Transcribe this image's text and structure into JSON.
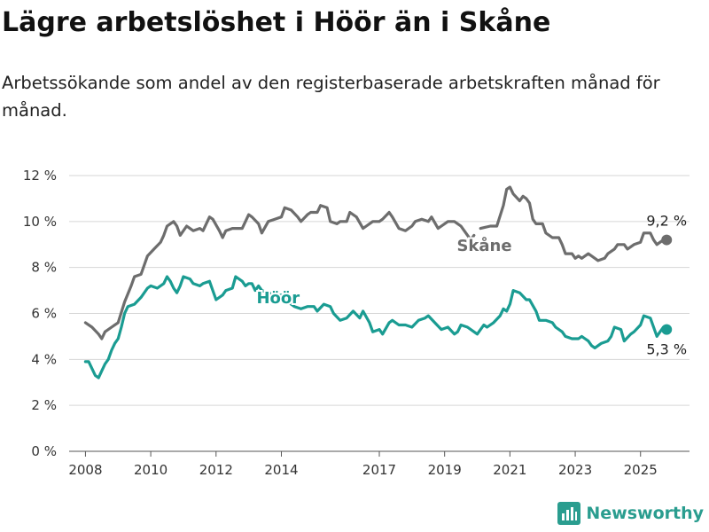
{
  "header": {
    "title": "Lägre arbetslöshet i Höör än i Skåne",
    "subtitle": "Arbetssökande som andel av den registerbaserade arbetskraften månad för månad."
  },
  "brand": {
    "name": "Newsworthy",
    "icon": "bar-chart-logo-icon"
  },
  "chart_data": {
    "type": "line",
    "xlim": [
      2007.5,
      2026.5
    ],
    "ylim": [
      0,
      12
    ],
    "x_ticks": [
      2008,
      2010,
      2012,
      2014,
      2017,
      2019,
      2021,
      2023,
      2025
    ],
    "y_ticks": [
      {
        "value": 0,
        "label": "0 %"
      },
      {
        "value": 2,
        "label": "2 %"
      },
      {
        "value": 4,
        "label": "4 %"
      },
      {
        "value": 6,
        "label": "6 %"
      },
      {
        "value": 8,
        "label": "8 %"
      },
      {
        "value": 10,
        "label": "10 %"
      },
      {
        "value": 12,
        "label": "12 %"
      }
    ],
    "grid": "horizontal",
    "series": [
      {
        "name": "Skåne",
        "color": "#6d6d6d",
        "end_label": "9,2 %",
        "points": [
          [
            2008.0,
            5.6
          ],
          [
            2008.2,
            5.4
          ],
          [
            2008.4,
            5.1
          ],
          [
            2008.5,
            4.9
          ],
          [
            2008.6,
            5.2
          ],
          [
            2008.8,
            5.4
          ],
          [
            2009.0,
            5.6
          ],
          [
            2009.2,
            6.5
          ],
          [
            2009.4,
            7.2
          ],
          [
            2009.5,
            7.6
          ],
          [
            2009.7,
            7.7
          ],
          [
            2009.9,
            8.5
          ],
          [
            2010.1,
            8.8
          ],
          [
            2010.3,
            9.1
          ],
          [
            2010.4,
            9.4
          ],
          [
            2010.5,
            9.8
          ],
          [
            2010.7,
            10.0
          ],
          [
            2010.8,
            9.8
          ],
          [
            2010.9,
            9.4
          ],
          [
            2011.1,
            9.8
          ],
          [
            2011.2,
            9.7
          ],
          [
            2011.3,
            9.6
          ],
          [
            2011.5,
            9.7
          ],
          [
            2011.6,
            9.6
          ],
          [
            2011.8,
            10.2
          ],
          [
            2011.9,
            10.1
          ],
          [
            2012.1,
            9.6
          ],
          [
            2012.2,
            9.3
          ],
          [
            2012.3,
            9.6
          ],
          [
            2012.5,
            9.7
          ],
          [
            2012.7,
            9.7
          ],
          [
            2012.8,
            9.7
          ],
          [
            2013.0,
            10.3
          ],
          [
            2013.1,
            10.2
          ],
          [
            2013.3,
            9.9
          ],
          [
            2013.4,
            9.5
          ],
          [
            2013.6,
            10.0
          ],
          [
            2013.8,
            10.1
          ],
          [
            2014.0,
            10.2
          ],
          [
            2014.1,
            10.6
          ],
          [
            2014.3,
            10.5
          ],
          [
            2014.5,
            10.2
          ],
          [
            2014.6,
            10.0
          ],
          [
            2014.8,
            10.3
          ],
          [
            2014.9,
            10.4
          ],
          [
            2015.1,
            10.4
          ],
          [
            2015.2,
            10.7
          ],
          [
            2015.4,
            10.6
          ],
          [
            2015.5,
            10.0
          ],
          [
            2015.7,
            9.9
          ],
          [
            2015.8,
            10.0
          ],
          [
            2016.0,
            10.0
          ],
          [
            2016.1,
            10.4
          ],
          [
            2016.3,
            10.2
          ],
          [
            2016.5,
            9.7
          ],
          [
            2016.6,
            9.8
          ],
          [
            2016.8,
            10.0
          ],
          [
            2017.0,
            10.0
          ],
          [
            2017.1,
            10.1
          ],
          [
            2017.3,
            10.4
          ],
          [
            2017.4,
            10.2
          ],
          [
            2017.6,
            9.7
          ],
          [
            2017.8,
            9.6
          ],
          [
            2018.0,
            9.8
          ],
          [
            2018.1,
            10.0
          ],
          [
            2018.3,
            10.1
          ],
          [
            2018.5,
            10.0
          ],
          [
            2018.6,
            10.2
          ],
          [
            2018.8,
            9.7
          ],
          [
            2018.9,
            9.8
          ],
          [
            2019.1,
            10.0
          ],
          [
            2019.3,
            10.0
          ],
          [
            2019.5,
            9.8
          ],
          [
            2019.6,
            9.6
          ],
          [
            2019.8,
            9.2
          ],
          [
            2019.9,
            9.4
          ]
        ],
        "points_b": [
          [
            2020.1,
            9.7
          ],
          [
            2020.4,
            9.8
          ],
          [
            2020.6,
            9.8
          ],
          [
            2020.8,
            10.7
          ],
          [
            2020.9,
            11.4
          ],
          [
            2021.0,
            11.5
          ],
          [
            2021.1,
            11.2
          ],
          [
            2021.3,
            10.9
          ],
          [
            2021.4,
            11.1
          ],
          [
            2021.5,
            11.0
          ],
          [
            2021.6,
            10.8
          ],
          [
            2021.7,
            10.1
          ],
          [
            2021.8,
            9.9
          ],
          [
            2022.0,
            9.9
          ],
          [
            2022.1,
            9.5
          ],
          [
            2022.3,
            9.3
          ],
          [
            2022.5,
            9.3
          ],
          [
            2022.6,
            9.0
          ],
          [
            2022.7,
            8.6
          ],
          [
            2022.9,
            8.6
          ],
          [
            2023.0,
            8.4
          ],
          [
            2023.1,
            8.5
          ],
          [
            2023.2,
            8.4
          ],
          [
            2023.4,
            8.6
          ],
          [
            2023.6,
            8.4
          ],
          [
            2023.7,
            8.3
          ],
          [
            2023.9,
            8.4
          ],
          [
            2024.0,
            8.6
          ],
          [
            2024.2,
            8.8
          ],
          [
            2024.3,
            9.0
          ],
          [
            2024.5,
            9.0
          ],
          [
            2024.6,
            8.8
          ],
          [
            2024.8,
            9.0
          ],
          [
            2025.0,
            9.1
          ],
          [
            2025.1,
            9.5
          ],
          [
            2025.3,
            9.5
          ],
          [
            2025.4,
            9.2
          ],
          [
            2025.5,
            9.0
          ],
          [
            2025.6,
            9.1
          ],
          [
            2025.7,
            9.2
          ],
          [
            2025.8,
            9.2
          ]
        ]
      },
      {
        "name": "Höör",
        "color": "#1a9c92",
        "end_label": "5,3 %",
        "points": [
          [
            2008.0,
            3.9
          ],
          [
            2008.1,
            3.9
          ],
          [
            2008.2,
            3.6
          ],
          [
            2008.3,
            3.3
          ],
          [
            2008.4,
            3.2
          ],
          [
            2008.5,
            3.5
          ],
          [
            2008.6,
            3.8
          ],
          [
            2008.7,
            4.0
          ],
          [
            2008.8,
            4.4
          ],
          [
            2008.9,
            4.7
          ],
          [
            2009.0,
            4.9
          ],
          [
            2009.1,
            5.4
          ],
          [
            2009.2,
            6.0
          ],
          [
            2009.3,
            6.3
          ],
          [
            2009.5,
            6.4
          ],
          [
            2009.7,
            6.7
          ],
          [
            2009.9,
            7.1
          ],
          [
            2010.0,
            7.2
          ],
          [
            2010.2,
            7.1
          ],
          [
            2010.4,
            7.3
          ],
          [
            2010.5,
            7.6
          ],
          [
            2010.6,
            7.4
          ],
          [
            2010.7,
            7.1
          ],
          [
            2010.8,
            6.9
          ],
          [
            2010.9,
            7.2
          ],
          [
            2011.0,
            7.6
          ],
          [
            2011.2,
            7.5
          ],
          [
            2011.3,
            7.3
          ],
          [
            2011.5,
            7.2
          ],
          [
            2011.6,
            7.3
          ],
          [
            2011.8,
            7.4
          ],
          [
            2011.9,
            7.0
          ],
          [
            2012.0,
            6.6
          ],
          [
            2012.2,
            6.8
          ],
          [
            2012.3,
            7.0
          ],
          [
            2012.5,
            7.1
          ],
          [
            2012.6,
            7.6
          ],
          [
            2012.8,
            7.4
          ],
          [
            2012.9,
            7.2
          ],
          [
            2013.0,
            7.3
          ],
          [
            2013.1,
            7.3
          ],
          [
            2013.2,
            7.0
          ],
          [
            2013.3,
            7.2
          ],
          [
            2013.4,
            7.0
          ],
          [
            2013.6,
            6.9
          ],
          [
            2013.8,
            6.8
          ],
          [
            2014.0,
            6.8
          ],
          [
            2014.2,
            6.5
          ],
          [
            2014.4,
            6.3
          ],
          [
            2014.6,
            6.2
          ],
          [
            2014.8,
            6.3
          ],
          [
            2015.0,
            6.3
          ],
          [
            2015.1,
            6.1
          ],
          [
            2015.3,
            6.4
          ],
          [
            2015.5,
            6.3
          ],
          [
            2015.6,
            6.0
          ],
          [
            2015.8,
            5.7
          ],
          [
            2016.0,
            5.8
          ],
          [
            2016.2,
            6.1
          ],
          [
            2016.4,
            5.8
          ],
          [
            2016.5,
            6.1
          ],
          [
            2016.7,
            5.6
          ],
          [
            2016.8,
            5.2
          ],
          [
            2017.0,
            5.3
          ],
          [
            2017.1,
            5.1
          ],
          [
            2017.3,
            5.6
          ],
          [
            2017.4,
            5.7
          ],
          [
            2017.6,
            5.5
          ],
          [
            2017.8,
            5.5
          ],
          [
            2018.0,
            5.4
          ],
          [
            2018.2,
            5.7
          ],
          [
            2018.4,
            5.8
          ],
          [
            2018.5,
            5.9
          ],
          [
            2018.7,
            5.6
          ],
          [
            2018.9,
            5.3
          ],
          [
            2019.1,
            5.4
          ],
          [
            2019.3,
            5.1
          ],
          [
            2019.4,
            5.2
          ],
          [
            2019.5,
            5.5
          ],
          [
            2019.7,
            5.4
          ],
          [
            2019.9,
            5.2
          ],
          [
            2020.0,
            5.1
          ],
          [
            2020.2,
            5.5
          ],
          [
            2020.3,
            5.4
          ],
          [
            2020.5,
            5.6
          ],
          [
            2020.7,
            5.9
          ],
          [
            2020.8,
            6.2
          ],
          [
            2020.9,
            6.1
          ],
          [
            2021.0,
            6.4
          ],
          [
            2021.1,
            7.0
          ],
          [
            2021.3,
            6.9
          ],
          [
            2021.5,
            6.6
          ],
          [
            2021.6,
            6.6
          ],
          [
            2021.8,
            6.1
          ],
          [
            2021.9,
            5.7
          ],
          [
            2022.1,
            5.7
          ],
          [
            2022.3,
            5.6
          ],
          [
            2022.4,
            5.4
          ],
          [
            2022.6,
            5.2
          ],
          [
            2022.7,
            5.0
          ],
          [
            2022.9,
            4.9
          ],
          [
            2023.1,
            4.9
          ],
          [
            2023.2,
            5.0
          ],
          [
            2023.3,
            4.9
          ],
          [
            2023.4,
            4.8
          ],
          [
            2023.5,
            4.6
          ],
          [
            2023.6,
            4.5
          ],
          [
            2023.8,
            4.7
          ],
          [
            2024.0,
            4.8
          ],
          [
            2024.1,
            5.0
          ],
          [
            2024.2,
            5.4
          ],
          [
            2024.4,
            5.3
          ],
          [
            2024.5,
            4.8
          ],
          [
            2024.7,
            5.1
          ],
          [
            2024.8,
            5.2
          ],
          [
            2025.0,
            5.5
          ],
          [
            2025.1,
            5.9
          ],
          [
            2025.3,
            5.8
          ],
          [
            2025.4,
            5.4
          ],
          [
            2025.5,
            5.0
          ],
          [
            2025.6,
            5.2
          ],
          [
            2025.7,
            5.4
          ],
          [
            2025.8,
            5.3
          ]
        ]
      }
    ]
  }
}
